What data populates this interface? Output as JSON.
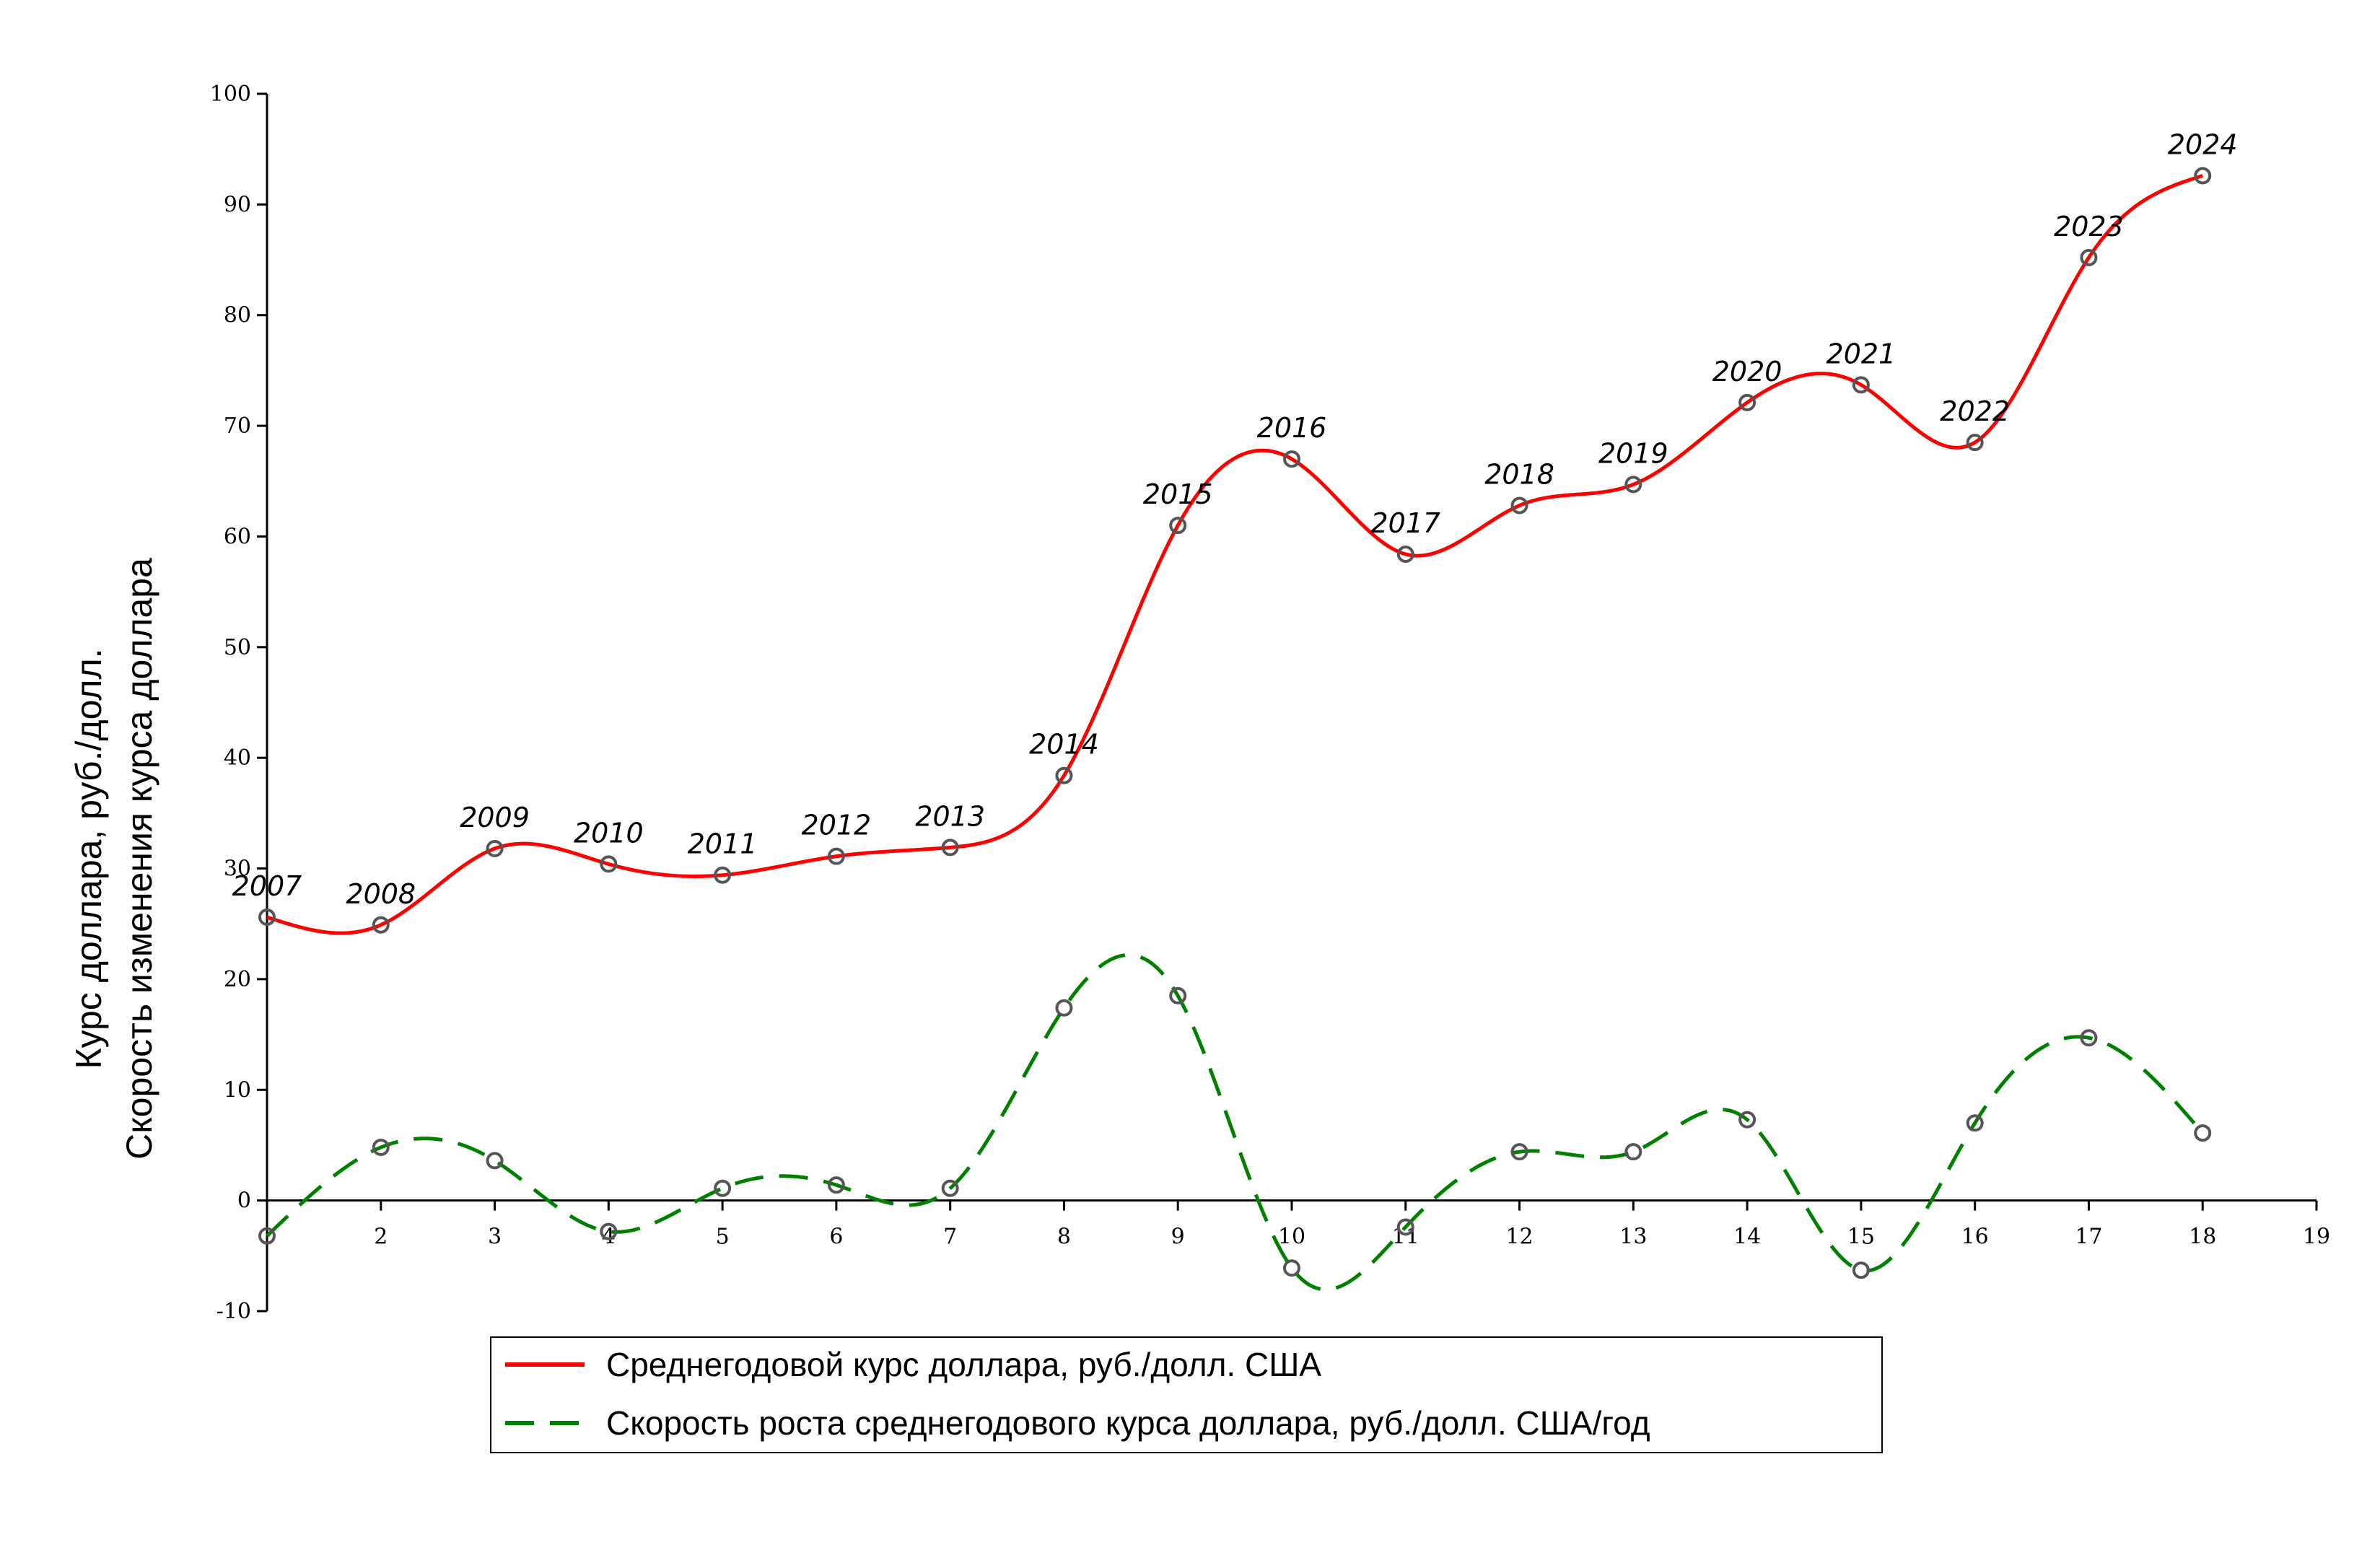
{
  "chart_data": {
    "type": "line",
    "ylabel": [
      "Курс доллара, руб./долл.",
      "Скорость изменения курса доллара"
    ],
    "xlim": [
      1,
      19
    ],
    "ylim": [
      -10,
      100
    ],
    "x_ticks": [
      2,
      3,
      4,
      5,
      6,
      7,
      8,
      9,
      10,
      11,
      12,
      13,
      14,
      15,
      16,
      17,
      18,
      19
    ],
    "y_ticks": [
      -10,
      0,
      10,
      20,
      30,
      40,
      50,
      60,
      70,
      80,
      90,
      100
    ],
    "legend_position": "bottom",
    "series": [
      {
        "name": "Среднегодовой курс доллара, руб./долл. США",
        "color": "#ff0000",
        "style": "solid",
        "x": [
          1,
          2,
          3,
          4,
          5,
          6,
          7,
          8,
          9,
          10,
          11,
          12,
          13,
          14,
          15,
          16,
          17,
          18
        ],
        "values": [
          25.6,
          24.9,
          31.8,
          30.4,
          29.4,
          31.1,
          31.9,
          38.4,
          61.0,
          67.0,
          58.4,
          62.8,
          64.7,
          72.1,
          73.7,
          68.5,
          85.2,
          92.6
        ],
        "point_labels": [
          "2007",
          "2008",
          "2009",
          "2010",
          "2011",
          "2012",
          "2013",
          "2014",
          "2015",
          "2016",
          "2017",
          "2018",
          "2019",
          "2020",
          "2021",
          "2022",
          "2023",
          "2024"
        ]
      },
      {
        "name": "Скорость роста среднегодового курса доллара, руб./долл. США/год",
        "color": "#008000",
        "style": "dashed",
        "x": [
          1,
          2,
          3,
          4,
          5,
          6,
          7,
          8,
          9,
          10,
          11,
          12,
          13,
          14,
          15,
          16,
          17,
          18
        ],
        "values": [
          -3.2,
          4.8,
          3.6,
          -2.8,
          1.1,
          1.4,
          1.1,
          17.4,
          18.5,
          -6.1,
          -2.4,
          4.4,
          4.4,
          7.3,
          -6.3,
          7.0,
          14.7,
          6.1
        ]
      }
    ]
  }
}
